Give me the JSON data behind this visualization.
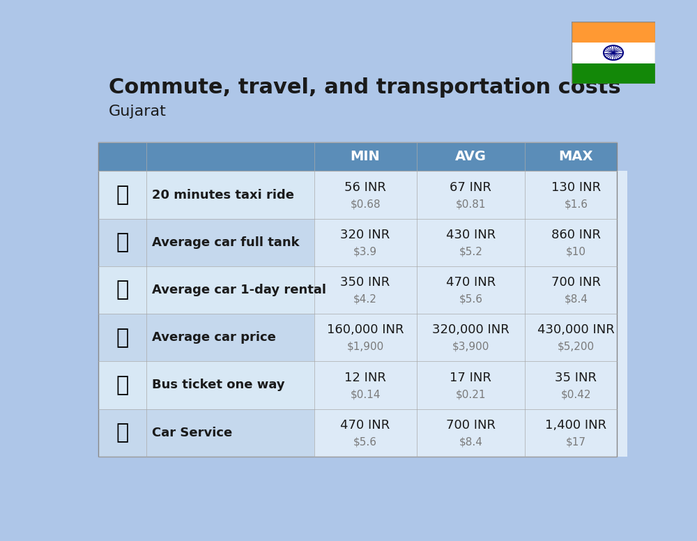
{
  "title": "Commute, travel, and transportation costs",
  "subtitle": "Gujarat",
  "background_color": "#aec6e8",
  "header_bg_color": "#5b8db8",
  "header_text_color": "#ffffff",
  "row_bg_even": "#c5d8ed",
  "row_bg_odd": "#d8e8f5",
  "cell_bg_color": "#ddeaf7",
  "label_color": "#1a1a1a",
  "value_color": "#1a1a1a",
  "usd_color": "#7a7a7a",
  "col_headers": [
    "",
    "",
    "MIN",
    "AVG",
    "MAX"
  ],
  "rows": [
    {
      "label": "20 minutes taxi ride",
      "min_inr": "56 INR",
      "min_usd": "$0.68",
      "avg_inr": "67 INR",
      "avg_usd": "$0.81",
      "max_inr": "130 INR",
      "max_usd": "$1.6"
    },
    {
      "label": "Average car full tank",
      "min_inr": "320 INR",
      "min_usd": "$3.9",
      "avg_inr": "430 INR",
      "avg_usd": "$5.2",
      "max_inr": "860 INR",
      "max_usd": "$10"
    },
    {
      "label": "Average car 1-day rental",
      "min_inr": "350 INR",
      "min_usd": "$4.2",
      "avg_inr": "470 INR",
      "avg_usd": "$5.6",
      "max_inr": "700 INR",
      "max_usd": "$8.4"
    },
    {
      "label": "Average car price",
      "min_inr": "160,000 INR",
      "min_usd": "$1,900",
      "avg_inr": "320,000 INR",
      "avg_usd": "$3,900",
      "max_inr": "430,000 INR",
      "max_usd": "$5,200"
    },
    {
      "label": "Bus ticket one way",
      "min_inr": "12 INR",
      "min_usd": "$0.14",
      "avg_inr": "17 INR",
      "avg_usd": "$0.21",
      "max_inr": "35 INR",
      "max_usd": "$0.42"
    },
    {
      "label": "Car Service",
      "min_inr": "470 INR",
      "min_usd": "$5.6",
      "avg_inr": "700 INR",
      "avg_usd": "$8.4",
      "max_inr": "1,400 INR",
      "max_usd": "$17"
    }
  ],
  "icon_emojis": [
    "🚖",
    "⛽",
    "🚙",
    "🚗",
    "🚌",
    "🚗"
  ],
  "flag_orange": "#FF9933",
  "flag_white": "#ffffff",
  "flag_green": "#138808",
  "flag_chakra": "#000080"
}
